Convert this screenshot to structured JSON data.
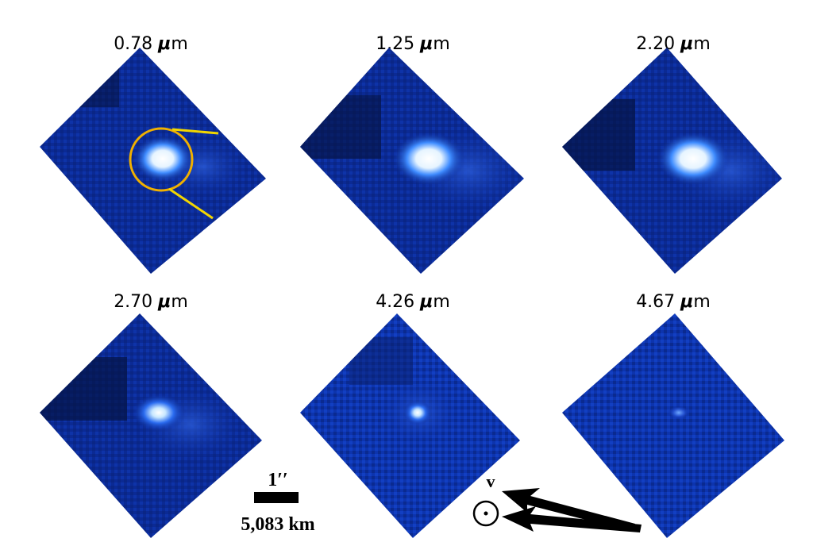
{
  "panels": [
    {
      "value": "0.78",
      "unit_symbol": "μ",
      "unit_rest": "m"
    },
    {
      "value": "1.25",
      "unit_symbol": "μ",
      "unit_rest": "m"
    },
    {
      "value": "2.20",
      "unit_symbol": "μ",
      "unit_rest": "m"
    },
    {
      "value": "2.70",
      "unit_symbol": "μ",
      "unit_rest": "m"
    },
    {
      "value": "4.26",
      "unit_symbol": "μ",
      "unit_rest": "m"
    },
    {
      "value": "4.67",
      "unit_symbol": "μ",
      "unit_rest": "m"
    }
  ],
  "scale_bar": {
    "angle": "1′′",
    "distance": "5,083 km"
  },
  "direction": {
    "velocity_label": "v",
    "sun_symbol": "⊙"
  },
  "colors": {
    "background": "#071a66",
    "highlight": "#ffffff",
    "circle": "#f0b000",
    "lines": "#f2d600"
  }
}
